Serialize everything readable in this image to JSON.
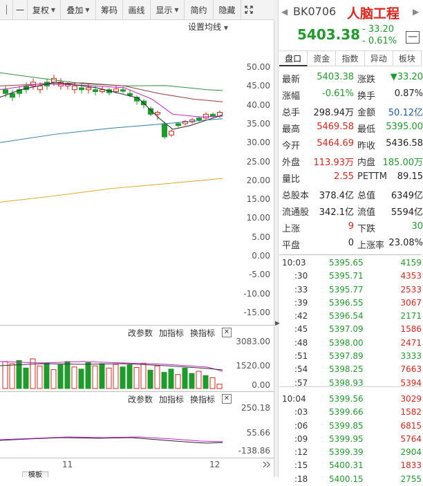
{
  "toolbar": {
    "items": [
      {
        "label": "",
        "icon": "separator-icon"
      },
      {
        "label": "一",
        "icon": "minus-icon"
      },
      {
        "label": "复权",
        "has_caret": true
      },
      {
        "label": "叠加",
        "has_caret": true
      },
      {
        "label": "筹码",
        "has_caret": false
      },
      {
        "label": "画线",
        "has_caret": false
      },
      {
        "label": "显示",
        "has_caret": true
      },
      {
        "label": "简约",
        "has_caret": false
      },
      {
        "label": "隐藏",
        "has_caret": false
      }
    ],
    "expand_icon": "expand-icon"
  },
  "ma_settings_label": "设置均线",
  "colors": {
    "up": "#e0231b",
    "down": "#1f9b2c",
    "ma5": "#222222",
    "ma10": "#c81fc8",
    "ma20": "#9a3b3b",
    "ma30": "#2f8f3a",
    "ma60": "#2a7fa8",
    "ma120": "#e0a31b"
  },
  "main_axis": [
    "50.00",
    "45.00",
    "40.00",
    "35.00",
    "30.00",
    "25.00",
    "20.00",
    "15.00",
    "10.00",
    "5.00",
    "0.00",
    "-5.00",
    "-10.00",
    "-15.00"
  ],
  "volume_panel": {
    "tools": [
      "改参数",
      "加指标",
      "换指标"
    ],
    "axis": [
      "3083.00",
      "1520.00",
      "0.00"
    ]
  },
  "indicator_panel": {
    "tools": [
      "改参数",
      "加指标",
      "换指标"
    ],
    "axis": [
      "250.18",
      "55.66",
      "-138.86"
    ]
  },
  "date_axis": [
    "11",
    "12"
  ],
  "bottom_tab_label": "模板",
  "quote": {
    "code": "BK0706",
    "name": "人脑工程",
    "last": "5403.38",
    "chg_abs": "- 33.20",
    "chg_pct": "- 0.61%",
    "tabs": [
      "盘口",
      "资金",
      "指数",
      "异动",
      "板块"
    ],
    "stats": [
      {
        "l1": "最新",
        "v1": "5403.38",
        "c1": "green",
        "l2": "涨跌",
        "v2": "▼33.20",
        "c2": "green"
      },
      {
        "l1": "涨幅",
        "v1": "-0.61%",
        "c1": "green",
        "l2": "换手",
        "v2": "0.87%",
        "c2": "dark"
      },
      {
        "l1": "总手",
        "v1": "298.94万",
        "c1": "dark",
        "l2": "金额",
        "v2": "50.12亿",
        "c2": "blue"
      },
      {
        "l1": "最高",
        "v1": "5469.58",
        "c1": "red",
        "l2": "最低",
        "v2": "5395.00",
        "c2": "green"
      },
      {
        "l1": "今开",
        "v1": "5464.69",
        "c1": "red",
        "l2": "昨收",
        "v2": "5436.58",
        "c2": "dark"
      },
      {
        "l1": "外盘",
        "v1": "113.93万",
        "c1": "red",
        "l2": "内盘",
        "v2": "185.00万",
        "c2": "green"
      },
      {
        "l1": "量比",
        "v1": "2.55",
        "c1": "red",
        "l2": "PETTM",
        "v2": "89.15",
        "c2": "dark"
      },
      {
        "l1": "总股本",
        "v1": "378.4亿",
        "c1": "dark",
        "l2": "总值",
        "v2": "6349亿",
        "c2": "dark"
      },
      {
        "l1": "流通股",
        "v1": "342.1亿",
        "c1": "dark",
        "l2": "流值",
        "v2": "5594亿",
        "c2": "dark"
      },
      {
        "l1": "上涨",
        "v1": "9",
        "c1": "red",
        "l2": "下跌",
        "v2": "30",
        "c2": "green"
      },
      {
        "l1": "平盘",
        "v1": "0",
        "c1": "dark",
        "l2": "上涨率",
        "v2": "23.08%",
        "c2": "dark"
      }
    ],
    "ticks": [
      {
        "time": "10:03",
        "price": "5395.65",
        "vol": "4159",
        "vc": "green"
      },
      {
        "time": ":30",
        "price": "5395.71",
        "vol": "4353",
        "vc": "red"
      },
      {
        "time": ":33",
        "price": "5395.77",
        "vol": "2533",
        "vc": "red"
      },
      {
        "time": ":39",
        "price": "5396.55",
        "vol": "3067",
        "vc": "red"
      },
      {
        "time": ":42",
        "price": "5396.54",
        "vol": "2171",
        "vc": "green"
      },
      {
        "time": ":45",
        "price": "5397.09",
        "vol": "1586",
        "vc": "red"
      },
      {
        "time": ":48",
        "price": "5398.00",
        "vol": "2471",
        "vc": "red"
      },
      {
        "time": ":51",
        "price": "5397.89",
        "vol": "3333",
        "vc": "green"
      },
      {
        "time": ":54",
        "price": "5398.25",
        "vol": "7663",
        "vc": "red"
      },
      {
        "time": ":57",
        "price": "5398.93",
        "vol": "5394",
        "vc": "red"
      },
      {
        "time": "10:04",
        "price": "5399.56",
        "vol": "3029",
        "vc": "red"
      },
      {
        "time": ":03",
        "price": "5399.66",
        "vol": "1582",
        "vc": "red"
      },
      {
        "time": ":06",
        "price": "5399.85",
        "vol": "6815",
        "vc": "red"
      },
      {
        "time": ":09",
        "price": "5399.95",
        "vol": "5764",
        "vc": "red"
      },
      {
        "time": ":12",
        "price": "5399.39",
        "vol": "2904",
        "vc": "green"
      },
      {
        "time": ":15",
        "price": "5400.31",
        "vol": "1833",
        "vc": "red"
      },
      {
        "time": ":18",
        "price": "5400.15",
        "vol": "2755",
        "vc": "green"
      }
    ]
  }
}
